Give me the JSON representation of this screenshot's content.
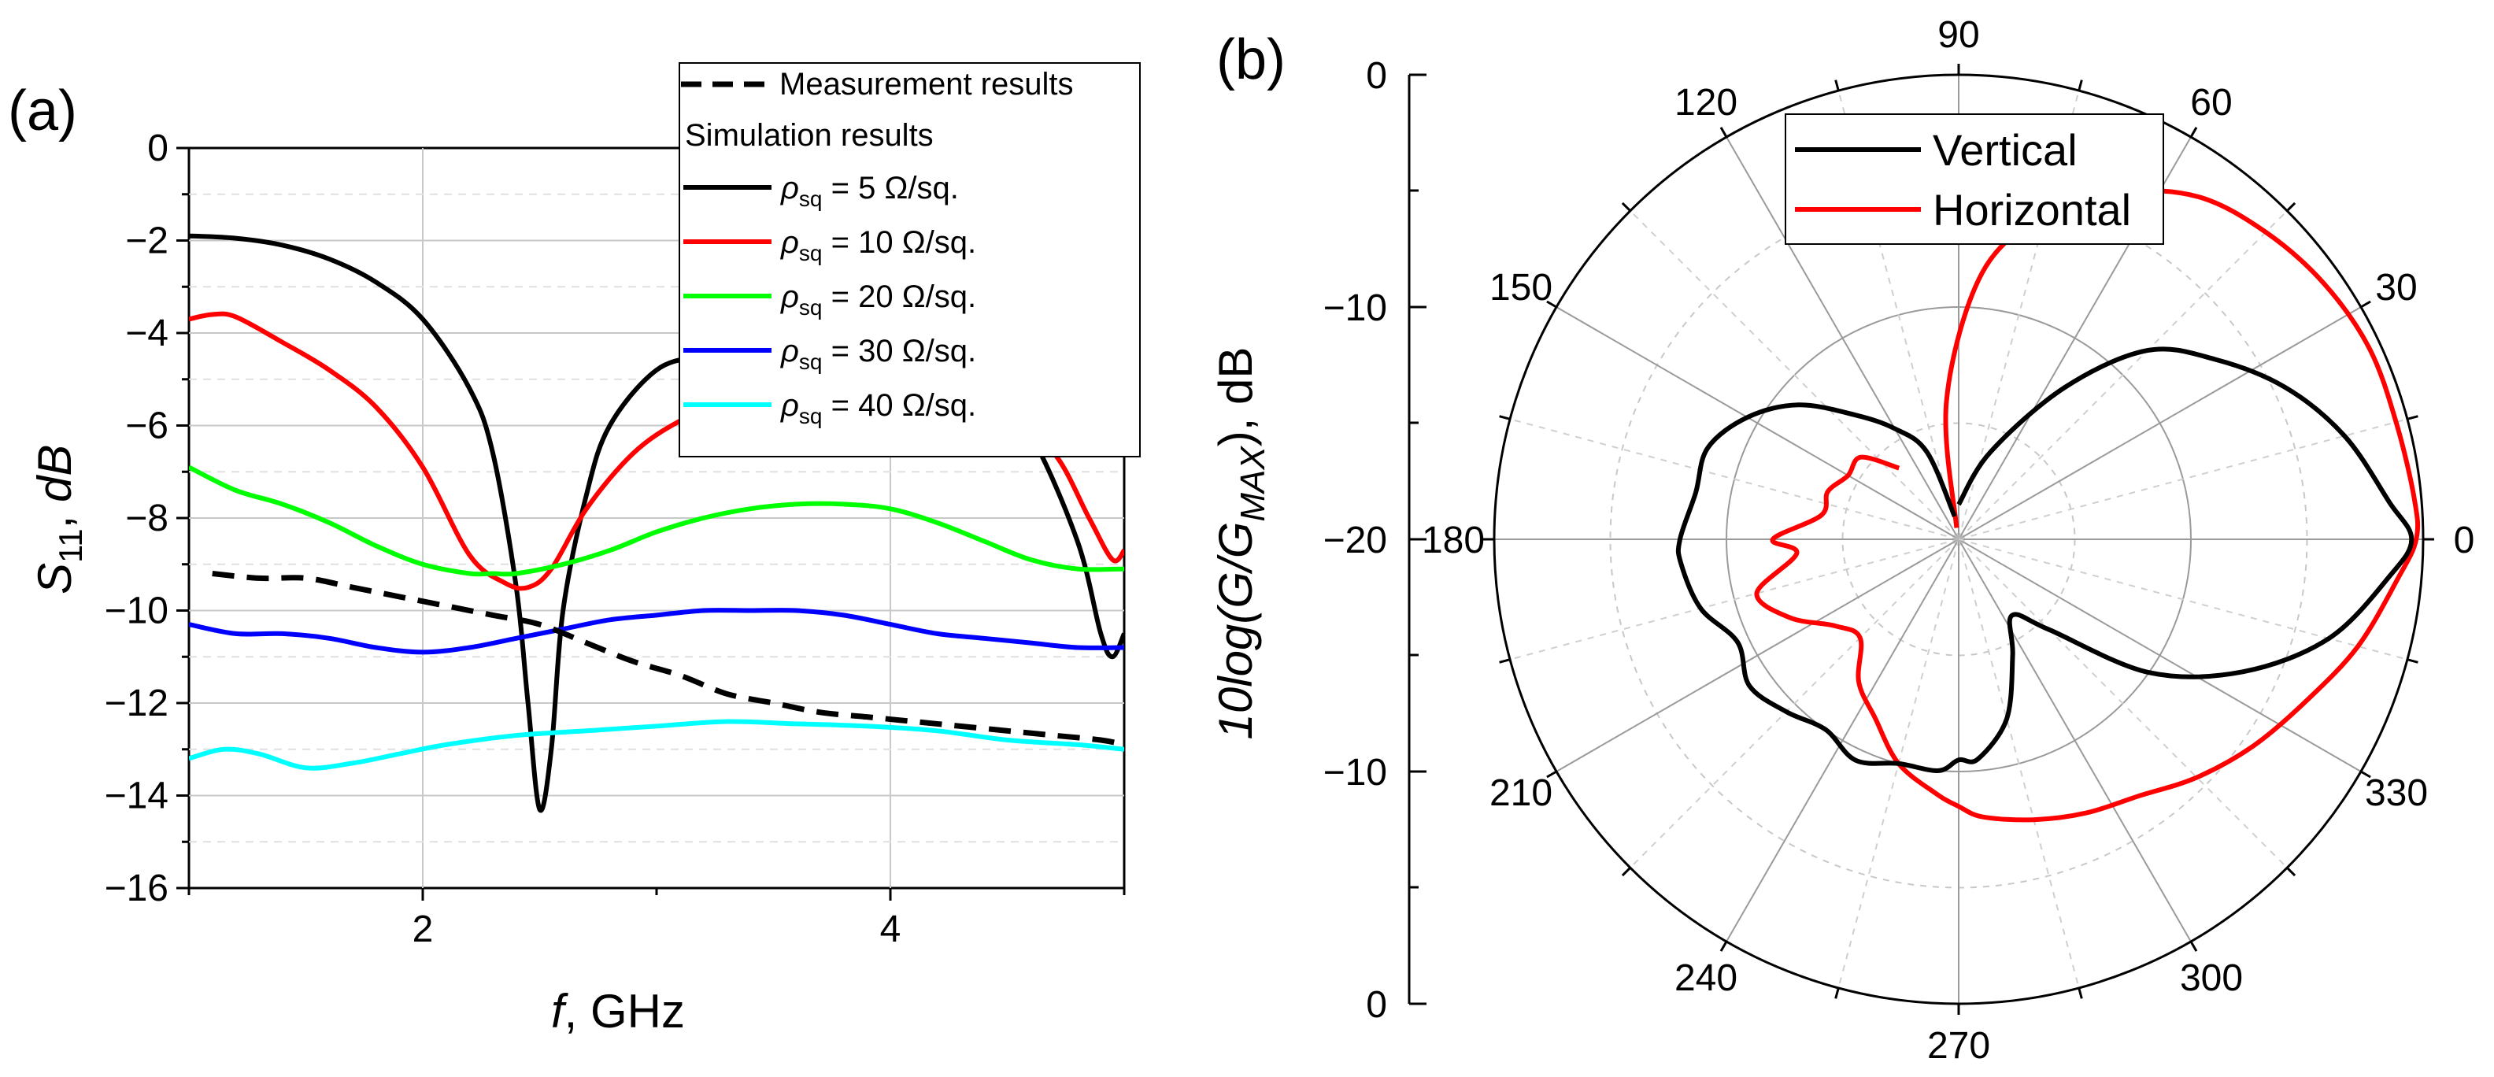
{
  "colors": {
    "black": "#000000",
    "red": "#ff0000",
    "green": "#00ff00",
    "blue": "#0000ff",
    "cyan": "#00ffff"
  },
  "panel_a": {
    "label": "(a)",
    "xlabel_italic": "f",
    "xlabel_rest": ", GHz",
    "ylabel_main": "S",
    "ylabel_sub": "11",
    "ylabel_rest": ",  ",
    "ylabel_unit": "dB",
    "legend": {
      "measurement": "Measurement results",
      "simulation_header": "Simulation results",
      "rho": "ρ",
      "rho_sub": "sq",
      "items": [
        {
          "value": " = 5 Ω/sq.",
          "color": "#000000"
        },
        {
          "value": " = 10 Ω/sq.",
          "color": "#ff0000"
        },
        {
          "value": " = 20 Ω/sq.",
          "color": "#00ff00"
        },
        {
          "value": " = 30 Ω/sq.",
          "color": "#0000ff"
        },
        {
          "value": " = 40 Ω/sq.",
          "color": "#00ffff"
        }
      ]
    }
  },
  "panel_b": {
    "label": "(b)",
    "ylabel_prefix": "10log(G/G",
    "ylabel_sub": "MAX",
    "ylabel_suffix": "), dB",
    "radial_ticks": [
      "0",
      "−10",
      "−20",
      "−10",
      "0"
    ],
    "angle_labels": [
      "0",
      "30",
      "60",
      "90",
      "120",
      "150",
      "180",
      "210",
      "240",
      "270",
      "300",
      "330"
    ],
    "legend": [
      {
        "label": "Vertical",
        "color": "#000000"
      },
      {
        "label": "Horizontal",
        "color": "#ff0000"
      }
    ]
  },
  "chart_data": [
    {
      "type": "line",
      "title": "",
      "xlabel": "f, GHz",
      "ylabel": "S11, dB",
      "xlim": [
        1.0,
        5.0
      ],
      "ylim": [
        -16,
        0
      ],
      "xticks": [
        2,
        4
      ],
      "yticks": [
        0,
        -2,
        -4,
        -6,
        -8,
        -10,
        -12,
        -14,
        -16
      ],
      "grid": true,
      "legend_position": "top-right",
      "series": [
        {
          "name": "Measurement results",
          "style": "dashed",
          "color": "#000000",
          "x": [
            1.1,
            1.3,
            1.5,
            1.7,
            1.9,
            2.1,
            2.3,
            2.5,
            2.7,
            2.9,
            3.1,
            3.3,
            3.5,
            3.7,
            3.9,
            4.1,
            4.3,
            4.5,
            4.7,
            4.9,
            5.0
          ],
          "y": [
            -9.2,
            -9.3,
            -9.3,
            -9.5,
            -9.7,
            -9.9,
            -10.1,
            -10.3,
            -10.7,
            -11.1,
            -11.4,
            -11.8,
            -12.0,
            -12.2,
            -12.3,
            -12.4,
            -12.5,
            -12.6,
            -12.7,
            -12.8,
            -12.9
          ]
        },
        {
          "name": "ρsq = 5 Ω/sq.",
          "color": "#000000",
          "x": [
            1.0,
            1.2,
            1.4,
            1.6,
            1.8,
            2.0,
            2.2,
            2.3,
            2.4,
            2.45,
            2.5,
            2.55,
            2.6,
            2.7,
            2.8,
            3.0,
            3.2,
            3.4,
            3.6,
            3.8,
            4.0,
            4.2,
            4.4,
            4.6,
            4.8,
            4.9,
            4.95,
            5.0
          ],
          "y": [
            -1.9,
            -1.95,
            -2.1,
            -2.4,
            -2.9,
            -3.7,
            -5.2,
            -6.6,
            -9.5,
            -12.0,
            -14.3,
            -13.0,
            -10.0,
            -7.5,
            -6.0,
            -4.8,
            -4.5,
            -4.4,
            -4.3,
            -4.4,
            -4.5,
            -4.7,
            -5.0,
            -6.2,
            -8.5,
            -10.5,
            -11.0,
            -10.5
          ]
        },
        {
          "name": "ρsq = 10 Ω/sq.",
          "color": "#ff0000",
          "x": [
            1.0,
            1.1,
            1.2,
            1.4,
            1.6,
            1.8,
            2.0,
            2.2,
            2.35,
            2.45,
            2.55,
            2.7,
            2.9,
            3.1,
            3.3,
            3.5,
            3.7,
            3.9,
            4.1,
            4.3,
            4.5,
            4.7,
            4.85,
            4.95,
            5.0
          ],
          "y": [
            -3.7,
            -3.6,
            -3.65,
            -4.2,
            -4.8,
            -5.6,
            -6.9,
            -8.8,
            -9.4,
            -9.5,
            -9.1,
            -7.8,
            -6.6,
            -5.9,
            -5.5,
            -5.3,
            -5.2,
            -5.2,
            -5.3,
            -5.5,
            -5.9,
            -6.6,
            -8.0,
            -8.9,
            -8.7
          ]
        },
        {
          "name": "ρsq = 20 Ω/sq.",
          "color": "#00ff00",
          "x": [
            1.0,
            1.2,
            1.4,
            1.6,
            1.8,
            2.0,
            2.2,
            2.3,
            2.4,
            2.6,
            2.8,
            3.0,
            3.2,
            3.4,
            3.6,
            3.8,
            4.0,
            4.2,
            4.4,
            4.6,
            4.8,
            5.0
          ],
          "y": [
            -6.9,
            -7.4,
            -7.7,
            -8.1,
            -8.6,
            -9.0,
            -9.2,
            -9.2,
            -9.2,
            -9.0,
            -8.7,
            -8.3,
            -8.0,
            -7.8,
            -7.7,
            -7.7,
            -7.8,
            -8.1,
            -8.5,
            -8.9,
            -9.1,
            -9.1
          ]
        },
        {
          "name": "ρsq = 30 Ω/sq.",
          "color": "#0000ff",
          "x": [
            1.0,
            1.2,
            1.4,
            1.6,
            1.8,
            2.0,
            2.2,
            2.4,
            2.6,
            2.8,
            3.0,
            3.2,
            3.4,
            3.6,
            3.8,
            4.0,
            4.2,
            4.4,
            4.6,
            4.8,
            5.0
          ],
          "y": [
            -10.3,
            -10.5,
            -10.5,
            -10.6,
            -10.8,
            -10.9,
            -10.8,
            -10.6,
            -10.4,
            -10.2,
            -10.1,
            -10.0,
            -10.0,
            -10.0,
            -10.1,
            -10.3,
            -10.5,
            -10.6,
            -10.7,
            -10.8,
            -10.8
          ]
        },
        {
          "name": "ρsq = 40 Ω/sq.",
          "color": "#00ffff",
          "x": [
            1.0,
            1.15,
            1.3,
            1.5,
            1.7,
            1.9,
            2.1,
            2.4,
            2.7,
            3.0,
            3.3,
            3.6,
            3.9,
            4.2,
            4.5,
            4.8,
            5.0
          ],
          "y": [
            -13.2,
            -13.0,
            -13.1,
            -13.4,
            -13.3,
            -13.1,
            -12.9,
            -12.7,
            -12.6,
            -12.5,
            -12.4,
            -12.45,
            -12.5,
            -12.6,
            -12.8,
            -12.9,
            -13.0
          ]
        }
      ]
    },
    {
      "type": "polar",
      "title": "",
      "ylabel": "10log(G/GMAX), dB",
      "rlim": [
        -20,
        0
      ],
      "angle_ticks": [
        0,
        30,
        60,
        90,
        120,
        150,
        180,
        210,
        240,
        270,
        300,
        330
      ],
      "grid": true,
      "legend_position": "top-center",
      "series": [
        {
          "name": "Vertical",
          "color": "#000000",
          "theta": [
            90,
            70,
            55,
            45,
            35,
            25,
            15,
            5,
            0,
            -5,
            -15,
            -25,
            -35,
            -45,
            -55,
            -65,
            -75,
            -85,
            -90,
            -95,
            -105,
            -115,
            -125,
            -135,
            -145,
            -155,
            -165,
            -175,
            180,
            170,
            160,
            150,
            140,
            130,
            120,
            110,
            100
          ],
          "r": [
            -18.5,
            -16.0,
            -12.0,
            -8.5,
            -6.5,
            -4.5,
            -2.8,
            -1.4,
            -0.5,
            -1.4,
            -3.5,
            -6.5,
            -10.0,
            -14.5,
            -16.0,
            -14.5,
            -12.0,
            -10.5,
            -10.5,
            -10.0,
            -10.0,
            -9.5,
            -10.0,
            -9.5,
            -9.0,
            -9.5,
            -8.5,
            -8.0,
            -8.0,
            -8.5,
            -8.5,
            -9.5,
            -11.0,
            -13.0,
            -14.5,
            -16.0,
            -19.0
          ]
        },
        {
          "name": "Horizontal",
          "color": "#ff0000",
          "theta": [
            100,
            95,
            85,
            75,
            65,
            55,
            45,
            35,
            25,
            15,
            5,
            0,
            -5,
            -15,
            -25,
            -35,
            -45,
            -55,
            -65,
            -75,
            -85,
            -90,
            -95,
            -105,
            -115,
            -125,
            -135,
            -145,
            -155,
            -165,
            -175,
            180,
            170,
            160,
            150,
            140,
            130
          ],
          "r": [
            -19.5,
            -14.0,
            -8.5,
            -5.5,
            -3.5,
            -2.0,
            -1.3,
            -0.8,
            -0.5,
            -0.5,
            -0.3,
            -0.3,
            -1.0,
            -2.2,
            -3.5,
            -4.5,
            -5.5,
            -6.5,
            -7.0,
            -7.5,
            -8.0,
            -8.5,
            -9.0,
            -10.0,
            -11.5,
            -12.5,
            -14.0,
            -13.5,
            -12.0,
            -11.0,
            -13.0,
            -12.0,
            -14.0,
            -14.0,
            -14.5,
            -14.5,
            -16.0
          ]
        }
      ]
    }
  ]
}
